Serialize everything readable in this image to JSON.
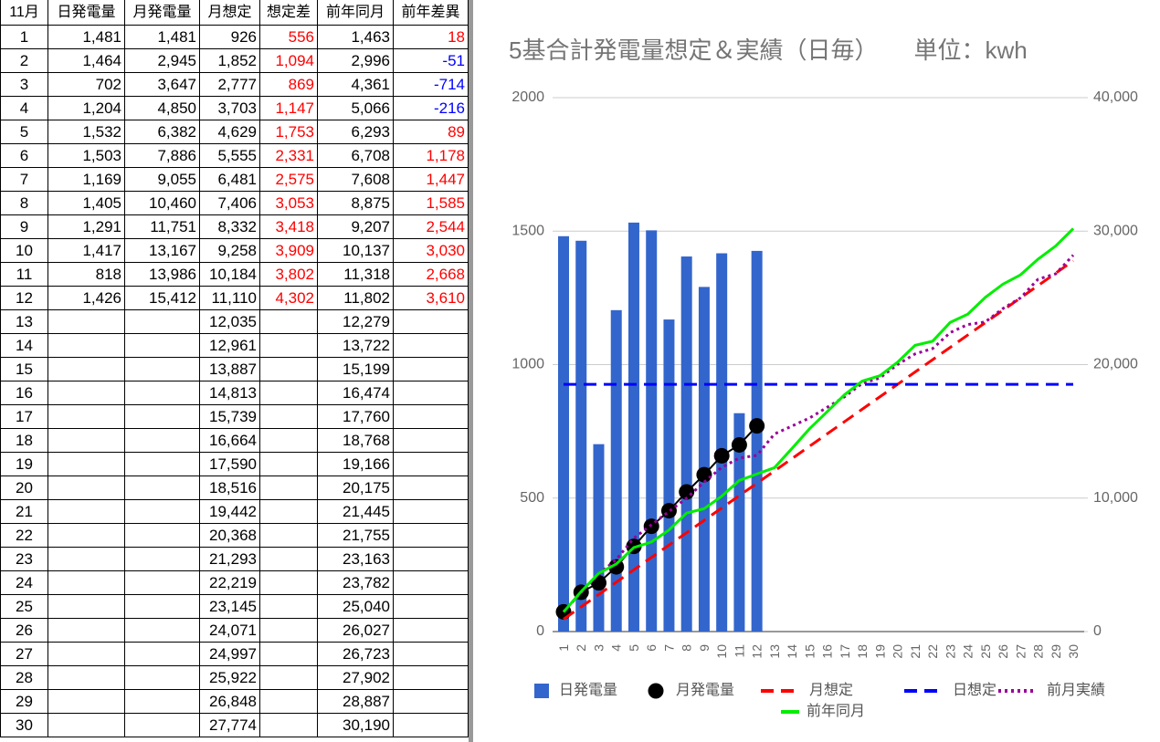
{
  "table": {
    "headers": [
      "11月",
      "日発電量",
      "月発電量",
      "月想定",
      "想定差",
      "前年同月",
      "前年差異"
    ],
    "rows": [
      [
        "1",
        "1,481",
        "1,481",
        "926",
        "556",
        "1,463",
        "18"
      ],
      [
        "2",
        "1,464",
        "2,945",
        "1,852",
        "1,094",
        "2,996",
        "-51"
      ],
      [
        "3",
        "702",
        "3,647",
        "2,777",
        "869",
        "4,361",
        "-714"
      ],
      [
        "4",
        "1,204",
        "4,850",
        "3,703",
        "1,147",
        "5,066",
        "-216"
      ],
      [
        "5",
        "1,532",
        "6,382",
        "4,629",
        "1,753",
        "6,293",
        "89"
      ],
      [
        "6",
        "1,503",
        "7,886",
        "5,555",
        "2,331",
        "6,708",
        "1,178"
      ],
      [
        "7",
        "1,169",
        "9,055",
        "6,481",
        "2,575",
        "7,608",
        "1,447"
      ],
      [
        "8",
        "1,405",
        "10,460",
        "7,406",
        "3,053",
        "8,875",
        "1,585"
      ],
      [
        "9",
        "1,291",
        "11,751",
        "8,332",
        "3,418",
        "9,207",
        "2,544"
      ],
      [
        "10",
        "1,417",
        "13,167",
        "9,258",
        "3,909",
        "10,137",
        "3,030"
      ],
      [
        "11",
        "818",
        "13,986",
        "10,184",
        "3,802",
        "11,318",
        "2,668"
      ],
      [
        "12",
        "1,426",
        "15,412",
        "11,110",
        "4,302",
        "11,802",
        "3,610"
      ],
      [
        "13",
        null,
        null,
        "12,035",
        null,
        "12,279",
        null
      ],
      [
        "14",
        null,
        null,
        "12,961",
        null,
        "13,722",
        null
      ],
      [
        "15",
        null,
        null,
        "13,887",
        null,
        "15,199",
        null
      ],
      [
        "16",
        null,
        null,
        "14,813",
        null,
        "16,474",
        null
      ],
      [
        "17",
        null,
        null,
        "15,739",
        null,
        "17,760",
        null
      ],
      [
        "18",
        null,
        null,
        "16,664",
        null,
        "18,768",
        null
      ],
      [
        "19",
        null,
        null,
        "17,590",
        null,
        "19,166",
        null
      ],
      [
        "20",
        null,
        null,
        "18,516",
        null,
        "20,175",
        null
      ],
      [
        "21",
        null,
        null,
        "19,442",
        null,
        "21,445",
        null
      ],
      [
        "22",
        null,
        null,
        "20,368",
        null,
        "21,755",
        null
      ],
      [
        "23",
        null,
        null,
        "21,293",
        null,
        "23,163",
        null
      ],
      [
        "24",
        null,
        null,
        "22,219",
        null,
        "23,782",
        null
      ],
      [
        "25",
        null,
        null,
        "23,145",
        null,
        "25,040",
        null
      ],
      [
        "26",
        null,
        null,
        "24,071",
        null,
        "26,027",
        null
      ],
      [
        "27",
        null,
        null,
        "24,997",
        null,
        "26,723",
        null
      ],
      [
        "28",
        null,
        null,
        "25,922",
        null,
        "27,902",
        null
      ],
      [
        "29",
        null,
        null,
        "26,848",
        null,
        "28,887",
        null
      ],
      [
        "30",
        null,
        null,
        "27,774",
        null,
        "30,190",
        null
      ]
    ]
  },
  "chart_data": {
    "type": "combo",
    "title": "5基合計発電量想定＆実績（日毎）　　単位：kwh",
    "categories": [
      "1",
      "2",
      "3",
      "4",
      "5",
      "6",
      "7",
      "8",
      "9",
      "10",
      "11",
      "12",
      "13",
      "14",
      "15",
      "16",
      "17",
      "18",
      "19",
      "20",
      "21",
      "22",
      "23",
      "24",
      "25",
      "26",
      "27",
      "28",
      "29",
      "30"
    ],
    "series": [
      {
        "name": "日発電量",
        "type": "bar",
        "axis": "y",
        "color": "#3366cc",
        "values": [
          1481,
          1464,
          702,
          1204,
          1532,
          1503,
          1169,
          1405,
          1291,
          1417,
          818,
          1426,
          null,
          null,
          null,
          null,
          null,
          null,
          null,
          null,
          null,
          null,
          null,
          null,
          null,
          null,
          null,
          null,
          null,
          null
        ]
      },
      {
        "name": "月発電量",
        "type": "dots",
        "axis": "y2",
        "color": "#000000",
        "values": [
          1481,
          2945,
          3647,
          4850,
          6382,
          7886,
          9055,
          10460,
          11751,
          13167,
          13986,
          15412,
          null,
          null,
          null,
          null,
          null,
          null,
          null,
          null,
          null,
          null,
          null,
          null,
          null,
          null,
          null,
          null,
          null,
          null
        ]
      },
      {
        "name": "月想定",
        "type": "dashed",
        "axis": "y2",
        "color": "#ff0000",
        "values": [
          926,
          1852,
          2777,
          3703,
          4629,
          5555,
          6481,
          7406,
          8332,
          9258,
          10184,
          11110,
          12035,
          12961,
          13887,
          14813,
          15739,
          16664,
          17590,
          18516,
          19442,
          20368,
          21293,
          22219,
          23145,
          24071,
          24997,
          25922,
          26848,
          27774
        ]
      },
      {
        "name": "日想定",
        "type": "dashed",
        "axis": "y",
        "color": "#0000ff",
        "values": [
          926,
          926,
          926,
          926,
          926,
          926,
          926,
          926,
          926,
          926,
          926,
          926,
          926,
          926,
          926,
          926,
          926,
          926,
          926,
          926,
          926,
          926,
          926,
          926,
          926,
          926,
          926,
          926,
          926,
          926
        ]
      },
      {
        "name": "前月実績",
        "type": "dotted",
        "axis": "y2",
        "color": "#990099",
        "values": [
          1500,
          2900,
          4300,
          5400,
          7000,
          8000,
          9000,
          10000,
          11200,
          12300,
          13000,
          13200,
          14800,
          15400,
          16000,
          16800,
          17600,
          18600,
          19000,
          20000,
          20800,
          21200,
          22400,
          23000,
          23200,
          24200,
          25000,
          26400,
          26800,
          28200
        ]
      },
      {
        "name": "前年同月",
        "type": "line",
        "axis": "y2",
        "color": "#00ee00",
        "values": [
          1463,
          2996,
          4361,
          5066,
          6293,
          6708,
          7608,
          8875,
          9207,
          10137,
          11318,
          11802,
          12279,
          13722,
          15199,
          16474,
          17760,
          18768,
          19166,
          20175,
          21445,
          21755,
          23163,
          23782,
          25040,
          26027,
          26723,
          27902,
          28887,
          30190
        ]
      }
    ],
    "ylim": [
      0,
      2000
    ],
    "yticks": [
      0,
      500,
      1000,
      1500,
      2000
    ],
    "y2lim": [
      0,
      40000
    ],
    "y2ticks": [
      0,
      {
        "value": 10000,
        "label": "10,000"
      },
      {
        "value": 20000,
        "label": "20,000"
      },
      {
        "value": 30000,
        "label": "30,000"
      },
      {
        "value": 40000,
        "label": "40,000"
      }
    ],
    "grid": true
  }
}
